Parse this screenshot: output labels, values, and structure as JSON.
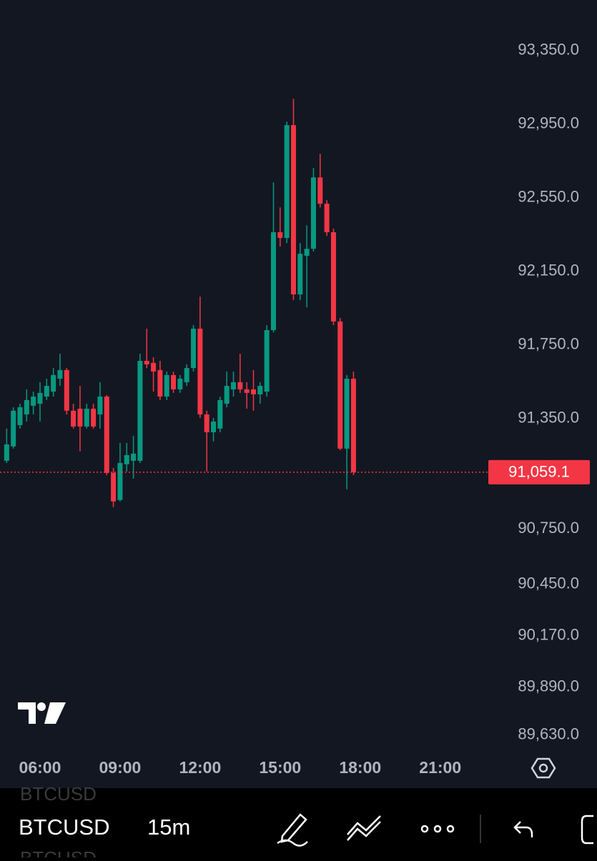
{
  "chart_data": {
    "type": "candlestick",
    "x": [
      4.75,
      5,
      5.25,
      5.5,
      5.75,
      6,
      6.25,
      6.5,
      6.75,
      7,
      7.25,
      7.5,
      7.75,
      8,
      8.25,
      8.5,
      8.75,
      9,
      9.25,
      9.5,
      9.75,
      10,
      10.25,
      10.5,
      10.75,
      11,
      11.25,
      11.5,
      11.75,
      12,
      12.25,
      12.5,
      12.75,
      13,
      13.25,
      13.5,
      13.75,
      14,
      14.25,
      14.5,
      14.75,
      15,
      15.25,
      15.5,
      15.75,
      16,
      16.25,
      16.5,
      16.75,
      17,
      17.25,
      17.5,
      17.75
    ],
    "open": [
      91121,
      91199,
      91315,
      91373,
      91420,
      91431,
      91470,
      91497,
      91567,
      91614,
      91393,
      91404,
      91307,
      91404,
      91373,
      91470,
      91055,
      90908,
      91102,
      91121,
      91121,
      91664,
      91653,
      91614,
      91470,
      91587,
      91509,
      91548,
      91625,
      91839,
      91373,
      91276,
      91296,
      91431,
      91509,
      91548,
      91509,
      91509,
      91482,
      91497,
      91831,
      92363,
      92332,
      92945,
      92025,
      92235,
      92273,
      92661,
      92518,
      92363,
      91878,
      91187,
      91567
    ],
    "high": [
      91296,
      91412,
      91431,
      91509,
      91497,
      91548,
      91567,
      91625,
      91703,
      91625,
      91431,
      91528,
      91431,
      91431,
      91548,
      91478,
      91082,
      91218,
      91218,
      91257,
      91703,
      91839,
      91684,
      91664,
      91606,
      91606,
      91587,
      91645,
      91858,
      92013,
      91393,
      91354,
      91470,
      91606,
      91606,
      91703,
      91548,
      91614,
      91548,
      91858,
      92634,
      92498,
      92964,
      93088,
      92304,
      92401,
      92712,
      92789,
      92537,
      92382,
      91897,
      91587,
      91606
    ],
    "low": [
      91109,
      91187,
      91296,
      91334,
      91373,
      91334,
      91451,
      91470,
      91528,
      91373,
      91296,
      91172,
      91296,
      91296,
      91296,
      91043,
      90869,
      90900,
      91063,
      91024,
      91109,
      91625,
      91497,
      91451,
      91451,
      91490,
      91490,
      91528,
      91606,
      91354,
      91063,
      91226,
      91276,
      91412,
      91470,
      91490,
      91404,
      91393,
      91431,
      91470,
      91819,
      92285,
      92304,
      91994,
      91994,
      91955,
      92258,
      92498,
      92343,
      91858,
      91179,
      90966,
      91043
    ],
    "close": [
      91210,
      91393,
      91412,
      91451,
      91470,
      91490,
      91528,
      91587,
      91614,
      91393,
      91307,
      91307,
      91404,
      91307,
      91470,
      91055,
      90900,
      91109,
      91152,
      91160,
      91664,
      91645,
      91606,
      91470,
      91587,
      91509,
      91567,
      91625,
      91839,
      91373,
      91276,
      91334,
      91451,
      91528,
      91548,
      91509,
      91490,
      91482,
      91528,
      91831,
      92363,
      92332,
      92945,
      92025,
      92246,
      92273,
      92661,
      92518,
      92363,
      91878,
      91187,
      91567,
      91059.1
    ],
    "up_color": "#089981",
    "down_color": "#f23645",
    "ylim": [
      89548,
      93625
    ],
    "yticks": [
      {
        "value": 93350,
        "label": "93,350.0"
      },
      {
        "value": 92950,
        "label": "92,950.0"
      },
      {
        "value": 92550,
        "label": "92,550.0"
      },
      {
        "value": 92150,
        "label": "92,150.0"
      },
      {
        "value": 91750,
        "label": "91,750.0"
      },
      {
        "value": 91350,
        "label": "91,350.0"
      },
      {
        "value": 90750,
        "label": "90,750.0"
      },
      {
        "value": 90450,
        "label": "90,450.0"
      },
      {
        "value": 90170,
        "label": "90,170.0"
      },
      {
        "value": 89890,
        "label": "89,890.0"
      },
      {
        "value": 89630,
        "label": "89,630.0"
      }
    ],
    "xlim": [
      4.5,
      22.75
    ],
    "xticks": [
      {
        "value": 6,
        "label": "06:00"
      },
      {
        "value": 9,
        "label": "09:00"
      },
      {
        "value": 12,
        "label": "12:00"
      },
      {
        "value": 15,
        "label": "15:00"
      },
      {
        "value": 18,
        "label": "18:00"
      },
      {
        "value": 21,
        "label": "21:00"
      }
    ],
    "last_price": {
      "value": 91059.1,
      "label": "91,059.1"
    }
  },
  "toolbar": {
    "previous": "BTCUSD",
    "symbol": "BTCUSD",
    "next": "BTCUSD",
    "interval": "15m"
  }
}
